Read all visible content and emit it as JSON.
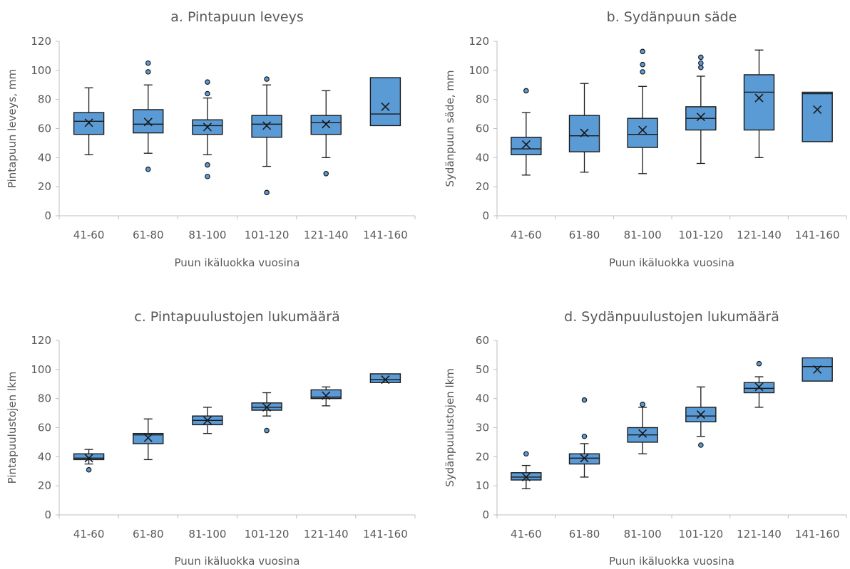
{
  "chart_data": [
    {
      "type": "box",
      "title": "a. Pintapuun leveys",
      "xlabel": "Puun ikäluokka vuosina",
      "ylabel": "Pintapuun leveys, mm",
      "ylim": [
        0,
        120
      ],
      "yticks": [
        0,
        20,
        40,
        60,
        80,
        100,
        120
      ],
      "categories": [
        "41-60",
        "61-80",
        "81-100",
        "101-120",
        "121-140",
        "141-160"
      ],
      "boxes": [
        {
          "min": 42,
          "q1": 56,
          "median": 65,
          "q3": 71,
          "max": 88,
          "mean": 64,
          "outliers": []
        },
        {
          "min": 43,
          "q1": 57,
          "median": 63,
          "q3": 73,
          "max": 90,
          "mean": 64.5,
          "outliers": [
            105,
            99,
            32
          ]
        },
        {
          "min": 42,
          "q1": 56,
          "median": 62,
          "q3": 66,
          "max": 81,
          "mean": 61,
          "outliers": [
            92,
            84,
            35,
            27
          ]
        },
        {
          "min": 34,
          "q1": 54,
          "median": 63,
          "q3": 69,
          "max": 90,
          "mean": 62,
          "outliers": [
            94,
            16
          ]
        },
        {
          "min": 40,
          "q1": 56,
          "median": 64,
          "q3": 69,
          "max": 86,
          "mean": 63,
          "outliers": [
            29
          ]
        },
        {
          "min": 62,
          "q1": 62,
          "median": 70,
          "q3": 95,
          "max": 95,
          "mean": 75,
          "outliers": []
        }
      ],
      "colors": {
        "box_fill": "#5b9bd5",
        "stroke": "#1a1a1a"
      },
      "grid": false,
      "legend": "none"
    },
    {
      "type": "box",
      "title": "b. Sydänpuun säde",
      "xlabel": "Puun ikäluokka vuosina",
      "ylabel": "Sydänpuun säde, mm",
      "ylim": [
        0,
        120
      ],
      "yticks": [
        0,
        20,
        40,
        60,
        80,
        100,
        120
      ],
      "categories": [
        "41-60",
        "61-80",
        "81-100",
        "101-120",
        "121-140",
        "141-160"
      ],
      "boxes": [
        {
          "min": 28,
          "q1": 42,
          "median": 46,
          "q3": 54,
          "max": 71,
          "mean": 49,
          "outliers": [
            86
          ]
        },
        {
          "min": 30,
          "q1": 44,
          "median": 55,
          "q3": 69,
          "max": 91,
          "mean": 57,
          "outliers": []
        },
        {
          "min": 29,
          "q1": 47,
          "median": 56,
          "q3": 67,
          "max": 89,
          "mean": 59,
          "outliers": [
            113,
            104,
            99
          ]
        },
        {
          "min": 36,
          "q1": 59,
          "median": 67,
          "q3": 75,
          "max": 96,
          "mean": 68,
          "outliers": [
            109,
            105,
            102
          ]
        },
        {
          "min": 40,
          "q1": 59,
          "median": 85,
          "q3": 97,
          "max": 114,
          "mean": 81,
          "outliers": []
        },
        {
          "min": 51,
          "q1": 51,
          "median": 84,
          "q3": 85,
          "max": 85,
          "mean": 73,
          "outliers": []
        }
      ],
      "colors": {
        "box_fill": "#5b9bd5",
        "stroke": "#1a1a1a"
      },
      "grid": false,
      "legend": "none"
    },
    {
      "type": "box",
      "title": "c. Pintapuulustojen lukumäärä",
      "xlabel": "Puun ikäluokka vuosina",
      "ylabel": "Pintapuulustojen lkm",
      "ylim": [
        0,
        120
      ],
      "yticks": [
        0,
        20,
        40,
        60,
        80,
        100,
        120
      ],
      "categories": [
        "41-60",
        "61-80",
        "81-100",
        "101-120",
        "121-140",
        "141-160"
      ],
      "boxes": [
        {
          "min": 35,
          "q1": 38,
          "median": 39,
          "q3": 42,
          "max": 45,
          "mean": 39,
          "outliers": [
            31
          ]
        },
        {
          "min": 38,
          "q1": 49,
          "median": 55,
          "q3": 56,
          "max": 66,
          "mean": 53,
          "outliers": []
        },
        {
          "min": 56,
          "q1": 62,
          "median": 65,
          "q3": 68,
          "max": 74,
          "mean": 65,
          "outliers": []
        },
        {
          "min": 68,
          "q1": 72,
          "median": 74,
          "q3": 77,
          "max": 84,
          "mean": 74,
          "outliers": [
            58
          ]
        },
        {
          "min": 75,
          "q1": 80,
          "median": 81,
          "q3": 86,
          "max": 88,
          "mean": 82,
          "outliers": []
        },
        {
          "min": 91,
          "q1": 91,
          "median": 93,
          "q3": 97,
          "max": 97,
          "mean": 93,
          "outliers": []
        }
      ],
      "colors": {
        "box_fill": "#5b9bd5",
        "stroke": "#1a1a1a"
      },
      "grid": false,
      "legend": "none"
    },
    {
      "type": "box",
      "title": "d. Sydänpuulustojen lukumäärä",
      "xlabel": "Puun ikäluokka vuosina",
      "ylabel": "Sydänpuulustojen lkm",
      "ylim": [
        0,
        60
      ],
      "yticks": [
        0,
        10,
        20,
        30,
        40,
        50,
        60
      ],
      "categories": [
        "41-60",
        "61-80",
        "81-100",
        "101-120",
        "121-140",
        "141-160"
      ],
      "boxes": [
        {
          "min": 9,
          "q1": 12,
          "median": 13,
          "q3": 14.5,
          "max": 17,
          "mean": 13,
          "outliers": [
            21
          ]
        },
        {
          "min": 13,
          "q1": 17.5,
          "median": 19.5,
          "q3": 21,
          "max": 24.5,
          "mean": 19.5,
          "outliers": [
            39.5,
            27
          ]
        },
        {
          "min": 21,
          "q1": 25,
          "median": 27.5,
          "q3": 30,
          "max": 37,
          "mean": 28,
          "outliers": [
            38
          ]
        },
        {
          "min": 27,
          "q1": 32,
          "median": 34,
          "q3": 37,
          "max": 44,
          "mean": 34.5,
          "outliers": [
            24
          ]
        },
        {
          "min": 37,
          "q1": 42,
          "median": 43.5,
          "q3": 45.5,
          "max": 47.5,
          "mean": 44,
          "outliers": [
            52
          ]
        },
        {
          "min": 46,
          "q1": 46,
          "median": 51,
          "q3": 54,
          "max": 54,
          "mean": 50,
          "outliers": []
        }
      ],
      "colors": {
        "box_fill": "#5b9bd5",
        "stroke": "#1a1a1a"
      },
      "grid": false,
      "legend": "none"
    }
  ]
}
